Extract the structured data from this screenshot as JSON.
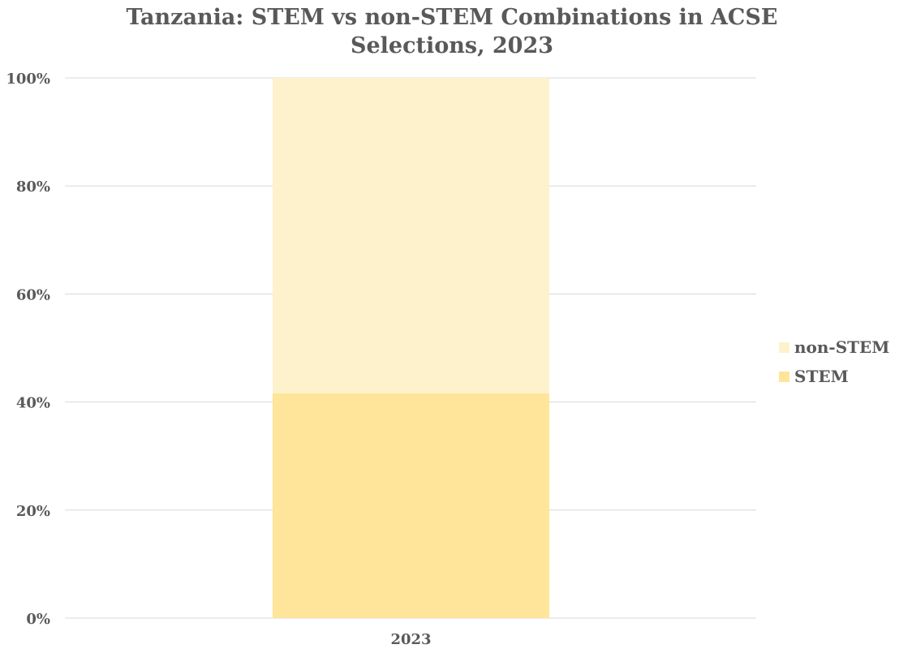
{
  "chart_data": {
    "type": "bar",
    "stacked": true,
    "percent_stacked": true,
    "title_lines": [
      "Tanzania: STEM vs non-STEM Combinations in ACSE",
      "Selections, 2023"
    ],
    "categories": [
      "2023"
    ],
    "series": [
      {
        "name": "STEM",
        "values": [
          41.6
        ],
        "color": "#FEE599"
      },
      {
        "name": "non-STEM",
        "values": [
          58.4
        ],
        "color": "#FEF2CC"
      }
    ],
    "y_ticks": [
      "0%",
      "20%",
      "40%",
      "60%",
      "80%",
      "100%"
    ],
    "ylim": [
      0,
      100
    ],
    "grid": true,
    "legend": {
      "position": "right",
      "order": [
        "non-STEM",
        "STEM"
      ]
    },
    "text_color": "#595959",
    "grid_color": "#D9D9D9"
  }
}
